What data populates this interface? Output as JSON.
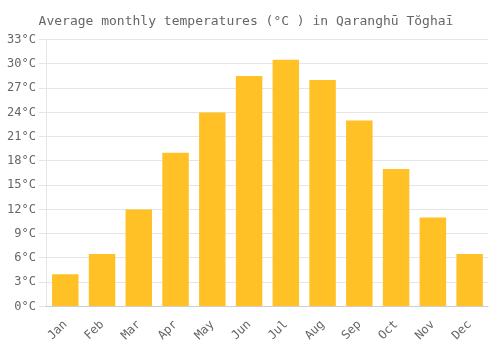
{
  "chart_data": {
    "type": "bar",
    "title": "Average monthly temperatures (°C ) in Qaranghū Tŏghaī",
    "categories": [
      "Jan",
      "Feb",
      "Mar",
      "Apr",
      "May",
      "Jun",
      "Jul",
      "Aug",
      "Sep",
      "Oct",
      "Nov",
      "Dec"
    ],
    "values": [
      4.0,
      6.5,
      12.0,
      19.0,
      24.0,
      28.5,
      30.5,
      28.0,
      23.0,
      17.0,
      11.0,
      6.5
    ],
    "color": "#FFC125",
    "ylim": [
      0,
      33
    ],
    "yticks": [
      {
        "value": 0,
        "label": "0°C"
      },
      {
        "value": 3,
        "label": "3°C"
      },
      {
        "value": 6,
        "label": "6°C"
      },
      {
        "value": 9,
        "label": "9°C"
      },
      {
        "value": 12,
        "label": "12°C"
      },
      {
        "value": 15,
        "label": "15°C"
      },
      {
        "value": 18,
        "label": "18°C"
      },
      {
        "value": 21,
        "label": "21°C"
      },
      {
        "value": 24,
        "label": "24°C"
      },
      {
        "value": 27,
        "label": "27°C"
      },
      {
        "value": 30,
        "label": "30°C"
      },
      {
        "value": 33,
        "label": "33°C"
      }
    ],
    "grid": true
  }
}
